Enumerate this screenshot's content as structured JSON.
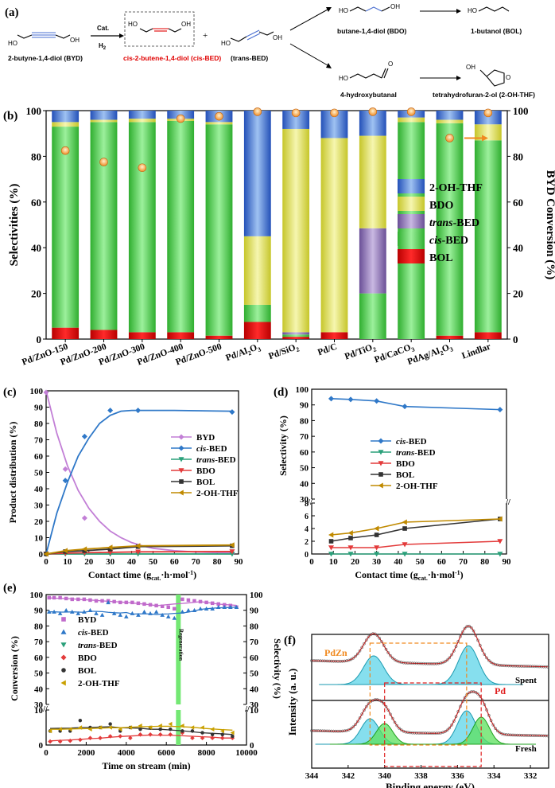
{
  "panels": {
    "a": "(a)",
    "b": "(b)",
    "c": "(c)",
    "d": "(d)",
    "e": "(e)",
    "f": "(f)"
  },
  "scheme": {
    "byd": "2-butyne-1,4-diol (BYD)",
    "cat": "Cat.",
    "h2": "H",
    "h2sub": "2",
    "cisbed": "cis-2-butene-1,4-diol  (cis-BED)",
    "plus": "+",
    "transbed": "(trans-BED)",
    "bdo": "butane-1,4-diol (BDO)",
    "bol": "1-butanol (BOL)",
    "hb": "4-hydroxybutanal",
    "thf": "tetrahydrofuran-2-ol (2-OH-THF)",
    "oh": "OH",
    "ho": "HO",
    "o": "O"
  },
  "colors": {
    "BOL": "#e00000",
    "cisBED": "#3dbf3d",
    "transBED": "#8a6fb0",
    "BDO": "#d8d840",
    "THF": "#3a6fd0",
    "c_BYD": "#c27fd6",
    "c_cis": "#2f78c8",
    "c_trans": "#2aa07a",
    "c_BDO": "#e33b3b",
    "c_BOL": "#333333",
    "c_THF": "#c08a00",
    "e_BYD": "#c06acb",
    "e_cis": "#2f78c8",
    "e_trans": "#2aa07a",
    "e_BDO": "#e33b3b",
    "e_BOL": "#333333",
    "e_THF": "#c9a000",
    "regen": "#74e874",
    "conv_marker": "#f08a20"
  },
  "chart_data": [
    {
      "id": "b",
      "type": "bar",
      "stacked": true,
      "ylabel": "Selectivities (%)",
      "y2label": "BYD Conversion (%)",
      "ylim": [
        0,
        100
      ],
      "y2lim": [
        0,
        100
      ],
      "yticks": [
        0,
        20,
        40,
        60,
        80,
        100
      ],
      "categories": [
        "Pd/ZnO-150",
        "Pd/ZnO-200",
        "Pd/ZnO-300",
        "Pd/ZnO-400",
        "Pd/ZnO-500",
        "Pd/Al2O3",
        "Pd/SiO2",
        "Pd/C",
        "Pd/TiO2",
        "Pd/CaCO3",
        "PdAg/Al2O3",
        "Lindlar"
      ],
      "category_parts": [
        [
          "Pd/ZnO-150"
        ],
        [
          "Pd/ZnO-200"
        ],
        [
          "Pd/ZnO-300"
        ],
        [
          "Pd/ZnO-400"
        ],
        [
          "Pd/ZnO-500"
        ],
        [
          "Pd/Al",
          "2",
          "O",
          "3"
        ],
        [
          "Pd/SiO",
          "2"
        ],
        [
          "Pd/C"
        ],
        [
          "Pd/TiO",
          "2"
        ],
        [
          "Pd/CaCO",
          "3"
        ],
        [
          "PdAg/Al",
          "2",
          "O",
          "3"
        ],
        [
          "Lindlar"
        ]
      ],
      "series": [
        {
          "name": "BOL",
          "values": [
            5,
            4,
            3,
            3,
            1.5,
            7.5,
            1,
            3,
            0,
            0,
            1.5,
            3
          ]
        },
        {
          "name": "cis-BED",
          "values": [
            88,
            91,
            92,
            92.5,
            92.5,
            7.5,
            1,
            0,
            20,
            95,
            93,
            84
          ]
        },
        {
          "name": "trans-BED",
          "values": [
            0,
            0,
            0,
            0,
            0,
            0,
            1,
            0,
            28.5,
            0,
            0,
            0
          ]
        },
        {
          "name": "BDO",
          "values": [
            2,
            1,
            1.5,
            1,
            1,
            30,
            89,
            85,
            40.5,
            2,
            1.5,
            7
          ]
        },
        {
          "name": "2-OH-THF",
          "values": [
            5,
            4,
            3.5,
            3.5,
            5,
            55,
            8,
            12,
            11,
            3,
            4,
            6
          ]
        }
      ],
      "conversion": [
        82.5,
        77.5,
        75,
        96.5,
        97.5,
        99.5,
        99,
        99,
        99.5,
        99.5,
        88,
        99
      ],
      "legend": [
        {
          "name": "2-OH-THF",
          "label": "2-OH-THF",
          "italic": false
        },
        {
          "name": "BDO",
          "label": "BDO",
          "italic": false
        },
        {
          "name": "trans-BED",
          "label": "trans",
          "suffix": "-BED",
          "italic": true
        },
        {
          "name": "cis-BED",
          "label": "cis",
          "suffix": "-BED",
          "italic": true
        },
        {
          "name": "BOL",
          "label": "BOL",
          "italic": false
        }
      ]
    },
    {
      "id": "c",
      "type": "line",
      "xlabel": "Contact time (g",
      "xlabel_sub": "cat.",
      "xlabel_end": "·h·mol",
      "xlabel_sup": "-1",
      "xlabel_close": ")",
      "ylabel": "Product distribution (%)",
      "xlim": [
        0,
        90
      ],
      "ylim": [
        0,
        100
      ],
      "xticks": [
        0,
        10,
        20,
        30,
        40,
        50,
        60,
        70,
        80,
        90
      ],
      "yticks": [
        0,
        10,
        20,
        30,
        40,
        50,
        60,
        70,
        80,
        90,
        100
      ],
      "series": [
        {
          "name": "BYD",
          "x": [
            0,
            9,
            18,
            30,
            43,
            87
          ],
          "y": [
            99,
            52,
            22,
            3.5,
            1,
            0.5
          ],
          "fit": [
            [
              0,
              100
            ],
            [
              5,
              74
            ],
            [
              10,
              54
            ],
            [
              15,
              39
            ],
            [
              20,
              28
            ],
            [
              25,
              20
            ],
            [
              30,
              14
            ],
            [
              35,
              10
            ],
            [
              40,
              7
            ],
            [
              45,
              5
            ],
            [
              50,
              3.5
            ],
            [
              60,
              2
            ],
            [
              70,
              1.2
            ],
            [
              87,
              0.6
            ]
          ]
        },
        {
          "name": "cis-BED",
          "x": [
            0,
            9,
            18,
            30,
            43,
            87
          ],
          "y": [
            0,
            45,
            72,
            88,
            88,
            87
          ],
          "fit": [
            [
              0,
              0
            ],
            [
              5,
              25
            ],
            [
              10,
              44
            ],
            [
              15,
              60
            ],
            [
              20,
              71
            ],
            [
              25,
              80
            ],
            [
              30,
              85
            ],
            [
              35,
              87.5
            ],
            [
              40,
              88
            ],
            [
              60,
              88
            ],
            [
              87,
              87.5
            ]
          ]
        },
        {
          "name": "trans-BED",
          "x": [
            0,
            9,
            18,
            30,
            43,
            87
          ],
          "y": [
            0,
            0,
            0,
            0,
            0,
            0
          ]
        },
        {
          "name": "BDO",
          "x": [
            0,
            9,
            18,
            30,
            43,
            87
          ],
          "y": [
            0,
            0.5,
            0.8,
            1,
            1.3,
            1.5
          ]
        },
        {
          "name": "BOL",
          "x": [
            0,
            9,
            18,
            30,
            43,
            87
          ],
          "y": [
            0,
            1.5,
            2,
            3,
            4.5,
            5
          ]
        },
        {
          "name": "2-OH-THF",
          "x": [
            0,
            9,
            18,
            30,
            43,
            87
          ],
          "y": [
            0,
            2,
            3,
            4,
            5,
            5.5
          ]
        }
      ],
      "legend": [
        "BYD",
        "cis-BED",
        "trans-BED",
        "BDO",
        "BOL",
        "2-OH-THF"
      ],
      "legend_labels": [
        [
          "BYD",
          ""
        ],
        [
          "cis",
          "-BED"
        ],
        [
          "trans",
          "-BED"
        ],
        [
          "BDO",
          ""
        ],
        [
          "BOL",
          ""
        ],
        [
          "2-OH-THF",
          ""
        ]
      ]
    },
    {
      "id": "d",
      "type": "line",
      "broken_axis": true,
      "xlabel": "Contact time (g",
      "xlabel_sub": "cat.",
      "xlabel_end": "·h·mol",
      "xlabel_sup": "-1",
      "xlabel_close": ")",
      "ylabel": "Selectivity (%)",
      "xlim": [
        0,
        90
      ],
      "xticks": [
        0,
        10,
        20,
        30,
        40,
        50,
        60,
        70,
        80,
        90
      ],
      "upper_ylim": [
        30,
        100
      ],
      "upper_yticks": [
        30,
        40,
        50,
        60,
        70,
        80,
        90,
        100
      ],
      "lower_ylim": [
        0,
        8
      ],
      "lower_yticks": [
        0,
        2,
        4,
        6,
        8
      ],
      "series": [
        {
          "name": "cis-BED",
          "x": [
            9,
            18,
            30,
            43,
            87
          ],
          "y": [
            94,
            93.5,
            92.5,
            89,
            87
          ]
        },
        {
          "name": "trans-BED",
          "x": [
            9,
            18,
            30,
            43,
            87
          ],
          "y": [
            0,
            0,
            0,
            0,
            0
          ]
        },
        {
          "name": "BDO",
          "x": [
            9,
            18,
            30,
            43,
            87
          ],
          "y": [
            1,
            1,
            1,
            1.5,
            2
          ]
        },
        {
          "name": "BOL",
          "x": [
            9,
            18,
            30,
            43,
            87
          ],
          "y": [
            2,
            2.5,
            3,
            4,
            5.5
          ]
        },
        {
          "name": "2-OH-THF",
          "x": [
            9,
            18,
            30,
            43,
            87
          ],
          "y": [
            3,
            3.3,
            4,
            5,
            5.5
          ]
        }
      ],
      "legend": [
        "cis-BED",
        "trans-BED",
        "BDO",
        "BOL",
        "2-OH-THF"
      ],
      "legend_labels": [
        [
          "cis",
          "-BED"
        ],
        [
          "trans",
          "-BED"
        ],
        [
          "BDO",
          ""
        ],
        [
          "BOL",
          ""
        ],
        [
          "2-OH-THF",
          ""
        ]
      ]
    },
    {
      "id": "e",
      "type": "scatter",
      "broken_axis": true,
      "xlabel": "Time on stream (min)",
      "ylabel": "Conversion (%)",
      "y2label": "Selectivity (%)",
      "xlim": [
        0,
        10000
      ],
      "xticks": [
        0,
        2000,
        4000,
        6000,
        8000,
        10000
      ],
      "upper_ylim": [
        30,
        100
      ],
      "upper_yticks": [
        30,
        40,
        50,
        60,
        70,
        80,
        90,
        100
      ],
      "lower_ylim": [
        0,
        10
      ],
      "lower_yticks": [
        0,
        10
      ],
      "regeneration_x": 6600,
      "regeneration_label": "Regeneration",
      "series": [
        {
          "name": "BYD",
          "x": [
            150,
            400,
            700,
            1000,
            1300,
            1600,
            1900,
            2200,
            2500,
            2800,
            3100,
            3400,
            3700,
            4000,
            4300,
            4600,
            4900,
            5200,
            5500,
            5800,
            6100,
            6400,
            6800,
            7100,
            7400,
            7700,
            8000,
            8300,
            8600,
            8900,
            9200,
            9500
          ],
          "y": [
            98,
            98,
            98,
            97.5,
            97,
            97,
            97,
            96.5,
            96,
            96,
            96,
            95.5,
            95,
            95,
            95,
            94.5,
            94,
            93.5,
            93,
            92.5,
            92,
            91,
            97,
            96.5,
            96,
            95.5,
            95,
            94.5,
            94,
            93.5,
            93,
            92
          ]
        },
        {
          "name": "cis-BED",
          "x": [
            150,
            400,
            700,
            1000,
            1300,
            1600,
            1900,
            2200,
            2500,
            2800,
            3100,
            3400,
            3700,
            4000,
            4300,
            4600,
            4900,
            5200,
            5500,
            5800,
            6100,
            6400,
            6800,
            7100,
            7400,
            7700,
            8000,
            8300,
            8600,
            8900,
            9200,
            9500
          ],
          "y": [
            89,
            89,
            88,
            90,
            89,
            88,
            89,
            90,
            88,
            87,
            95,
            88,
            87,
            86,
            88,
            87,
            89,
            88,
            89,
            87,
            86,
            85,
            89,
            90,
            90,
            91,
            91,
            91,
            92,
            92,
            92,
            92
          ]
        },
        {
          "name": "BDO",
          "x": [
            200,
            700,
            1200,
            1700,
            2200,
            2700,
            3200,
            3700,
            4200,
            4700,
            5200,
            5700,
            6200,
            6800,
            7300,
            7800,
            8300,
            8800,
            9300
          ],
          "y": [
            1,
            1,
            1.2,
            1.5,
            2,
            2,
            2.5,
            2.5,
            2,
            3,
            3,
            3,
            3,
            3.5,
            2,
            2,
            2,
            2,
            2
          ]
        },
        {
          "name": "BOL",
          "x": [
            200,
            700,
            1200,
            1700,
            2200,
            2700,
            3200,
            3700,
            4200,
            4700,
            5200,
            5700,
            6200,
            6800,
            7300,
            7800,
            8300,
            8800,
            9300
          ],
          "y": [
            4,
            4,
            4,
            7,
            5,
            5,
            6,
            4,
            5,
            4.5,
            5,
            4.5,
            4.5,
            4,
            4,
            3.5,
            3,
            3,
            2.5
          ]
        },
        {
          "name": "2-OH-THF",
          "x": [
            200,
            700,
            1200,
            1700,
            2200,
            2700,
            3200,
            3700,
            4200,
            4700,
            5200,
            5700,
            6200,
            6800,
            7300,
            7800,
            8300,
            8800,
            9300
          ],
          "y": [
            4,
            4.5,
            4.5,
            5,
            4.5,
            5,
            5,
            4.5,
            5,
            5.5,
            5,
            5.5,
            6,
            5.5,
            5,
            5,
            4.5,
            4,
            3.5
          ]
        }
      ],
      "legend": [
        "BYD",
        "cis-BED",
        "trans-BED",
        "BDO",
        "BOL",
        "2-OH-THF"
      ],
      "legend_labels": [
        [
          "BYD",
          ""
        ],
        [
          "cis",
          "-BED"
        ],
        [
          "trans",
          "-BED"
        ],
        [
          "BDO",
          ""
        ],
        [
          "BOL",
          ""
        ],
        [
          "2-OH-THF",
          ""
        ]
      ]
    },
    {
      "id": "f",
      "type": "line",
      "xlabel": "Binding energy (eV)",
      "ylabel": "Intensity (a. u.)",
      "xlim": [
        344,
        331
      ],
      "xticks": [
        344,
        342,
        340,
        338,
        336,
        334,
        332
      ],
      "labels": {
        "pdzn": "PdZn",
        "pd": "Pd",
        "spent": "Spent",
        "fresh": "Fresh"
      },
      "spent_peaks": [
        {
          "center": 340.6,
          "width": 0.55,
          "height": 1.0
        },
        {
          "center": 335.4,
          "width": 0.55,
          "height": 1.35
        }
      ],
      "fresh_peaks_pdzn": [
        {
          "center": 340.8,
          "width": 0.5,
          "height": 0.8
        },
        {
          "center": 335.5,
          "width": 0.5,
          "height": 1.05
        }
      ],
      "fresh_peaks_pd": [
        {
          "center": 340.0,
          "width": 0.45,
          "height": 0.65
        },
        {
          "center": 334.7,
          "width": 0.45,
          "height": 0.85
        }
      ]
    }
  ]
}
